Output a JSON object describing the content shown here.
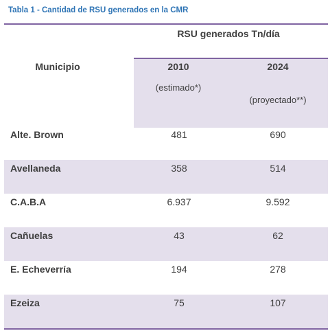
{
  "caption": "Tabla 1 - Cantidad de RSU generados en la CMR",
  "header": {
    "group": "RSU generados Tn/día",
    "municipio": "Municipio",
    "year_2010": "2010",
    "year_2024": "2024",
    "note_2010": "(estimado*)",
    "note_2024": "(proyectado**)"
  },
  "rows": [
    {
      "municipio": "Alte. Brown",
      "v2010": "481",
      "v2024": "690"
    },
    {
      "municipio": "Avellaneda",
      "v2010": "358",
      "v2024": "514"
    },
    {
      "municipio": "C.A.B.A",
      "v2010": "6.937",
      "v2024": "9.592"
    },
    {
      "municipio": "Cañuelas",
      "v2010": "43",
      "v2024": "62"
    },
    {
      "municipio": "E. Echeverría",
      "v2010": "194",
      "v2024": "278"
    },
    {
      "municipio": "Ezeiza",
      "v2010": "75",
      "v2024": "107"
    }
  ],
  "colors": {
    "caption": "#2e74b5",
    "rule": "#8064a2",
    "shade": "#e4dfec",
    "text": "#3f3f3f"
  }
}
